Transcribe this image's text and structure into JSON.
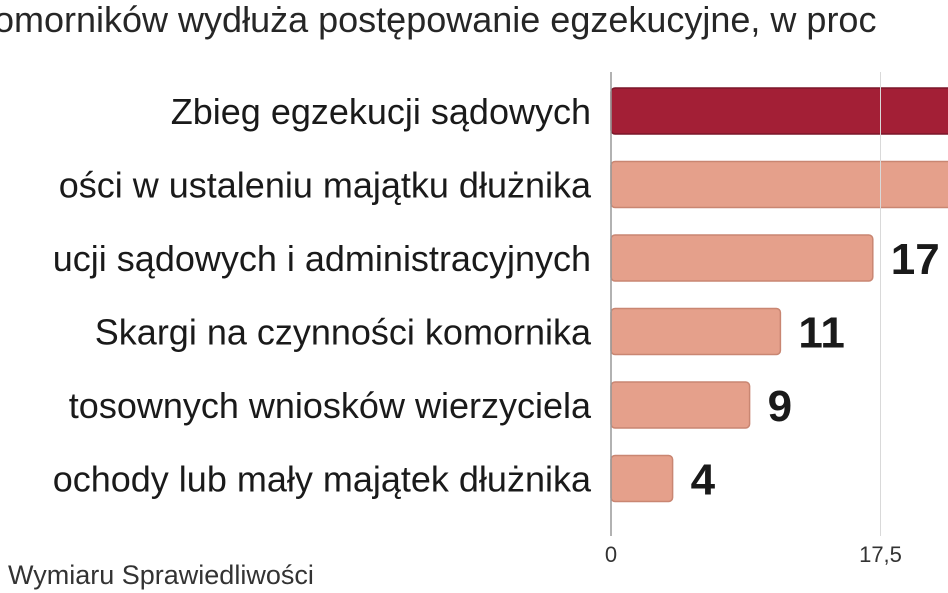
{
  "chart_data": {
    "type": "bar",
    "orientation": "horizontal",
    "title": "omorników wydłuża postępowanie egzekucyjne, w proc",
    "categories": [
      "Zbieg egzekucji sądowych",
      "ości w ustaleniu majątku dłużnika",
      "ucji sądowych i administracyjnych",
      "Skargi na czynności komornika",
      "tosownych wniosków wierzyciela",
      "ochody lub mały majątek dłużnika"
    ],
    "values": [
      null,
      null,
      17,
      11,
      9,
      4
    ],
    "value_labels": [
      "",
      "",
      "17",
      "11",
      "9",
      "4"
    ],
    "x_ticks": [
      {
        "value": 0,
        "label": "0"
      },
      {
        "value": 17.5,
        "label": "17,5"
      }
    ],
    "xlim": [
      0,
      26.5
    ],
    "grid": false,
    "legend": "none",
    "colors": {
      "highlight": "#a31f36",
      "highlight_stroke": "#7a1628",
      "default": "#e5a08b",
      "default_stroke": "#c98672",
      "axis": "#999999"
    },
    "source": "Wymiaru Sprawiedliwości"
  }
}
